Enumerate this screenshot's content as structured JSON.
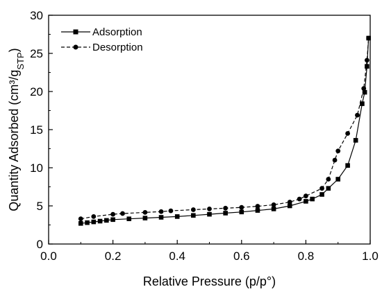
{
  "chart_data": {
    "type": "line",
    "xlabel": "Relative Pressure (p/p°)",
    "ylabel": {
      "main": "Quantity Adsorbed (cm³/g",
      "sub": "STP",
      "close": ")"
    },
    "xlim": [
      0.0,
      1.0
    ],
    "ylim": [
      0,
      30
    ],
    "xticks": [
      "0.0",
      "0.2",
      "0.4",
      "0.6",
      "0.8",
      "1.0"
    ],
    "yticks": [
      "0",
      "5",
      "10",
      "15",
      "20",
      "25",
      "30"
    ],
    "grid": false,
    "legend_position": "top-left",
    "series": [
      {
        "name": "Adsorption",
        "marker": "square",
        "line": "solid",
        "color": "#000000",
        "x": [
          0.1,
          0.12,
          0.14,
          0.16,
          0.18,
          0.2,
          0.25,
          0.3,
          0.35,
          0.4,
          0.45,
          0.5,
          0.55,
          0.6,
          0.65,
          0.7,
          0.75,
          0.8,
          0.82,
          0.85,
          0.87,
          0.9,
          0.93,
          0.955,
          0.975,
          0.983,
          0.99,
          0.995
        ],
        "y": [
          2.7,
          2.8,
          2.9,
          3.0,
          3.1,
          3.2,
          3.3,
          3.4,
          3.5,
          3.6,
          3.75,
          3.9,
          4.05,
          4.2,
          4.4,
          4.6,
          5.0,
          5.6,
          5.9,
          6.5,
          7.3,
          8.5,
          10.3,
          13.6,
          18.4,
          19.9,
          23.3,
          27.0
        ]
      },
      {
        "name": "Desorption",
        "marker": "circle",
        "line": "dashed",
        "color": "#000000",
        "x": [
          0.1,
          0.14,
          0.2,
          0.23,
          0.3,
          0.35,
          0.38,
          0.45,
          0.5,
          0.55,
          0.6,
          0.65,
          0.7,
          0.75,
          0.78,
          0.8,
          0.85,
          0.87,
          0.89,
          0.9,
          0.93,
          0.96,
          0.98,
          0.99,
          0.995
        ],
        "y": [
          3.3,
          3.6,
          3.9,
          4.0,
          4.15,
          4.25,
          4.35,
          4.5,
          4.6,
          4.7,
          4.8,
          4.95,
          5.15,
          5.5,
          5.9,
          6.3,
          7.3,
          8.5,
          11.0,
          12.2,
          14.5,
          16.9,
          20.4,
          24.1,
          27.0
        ]
      }
    ]
  }
}
